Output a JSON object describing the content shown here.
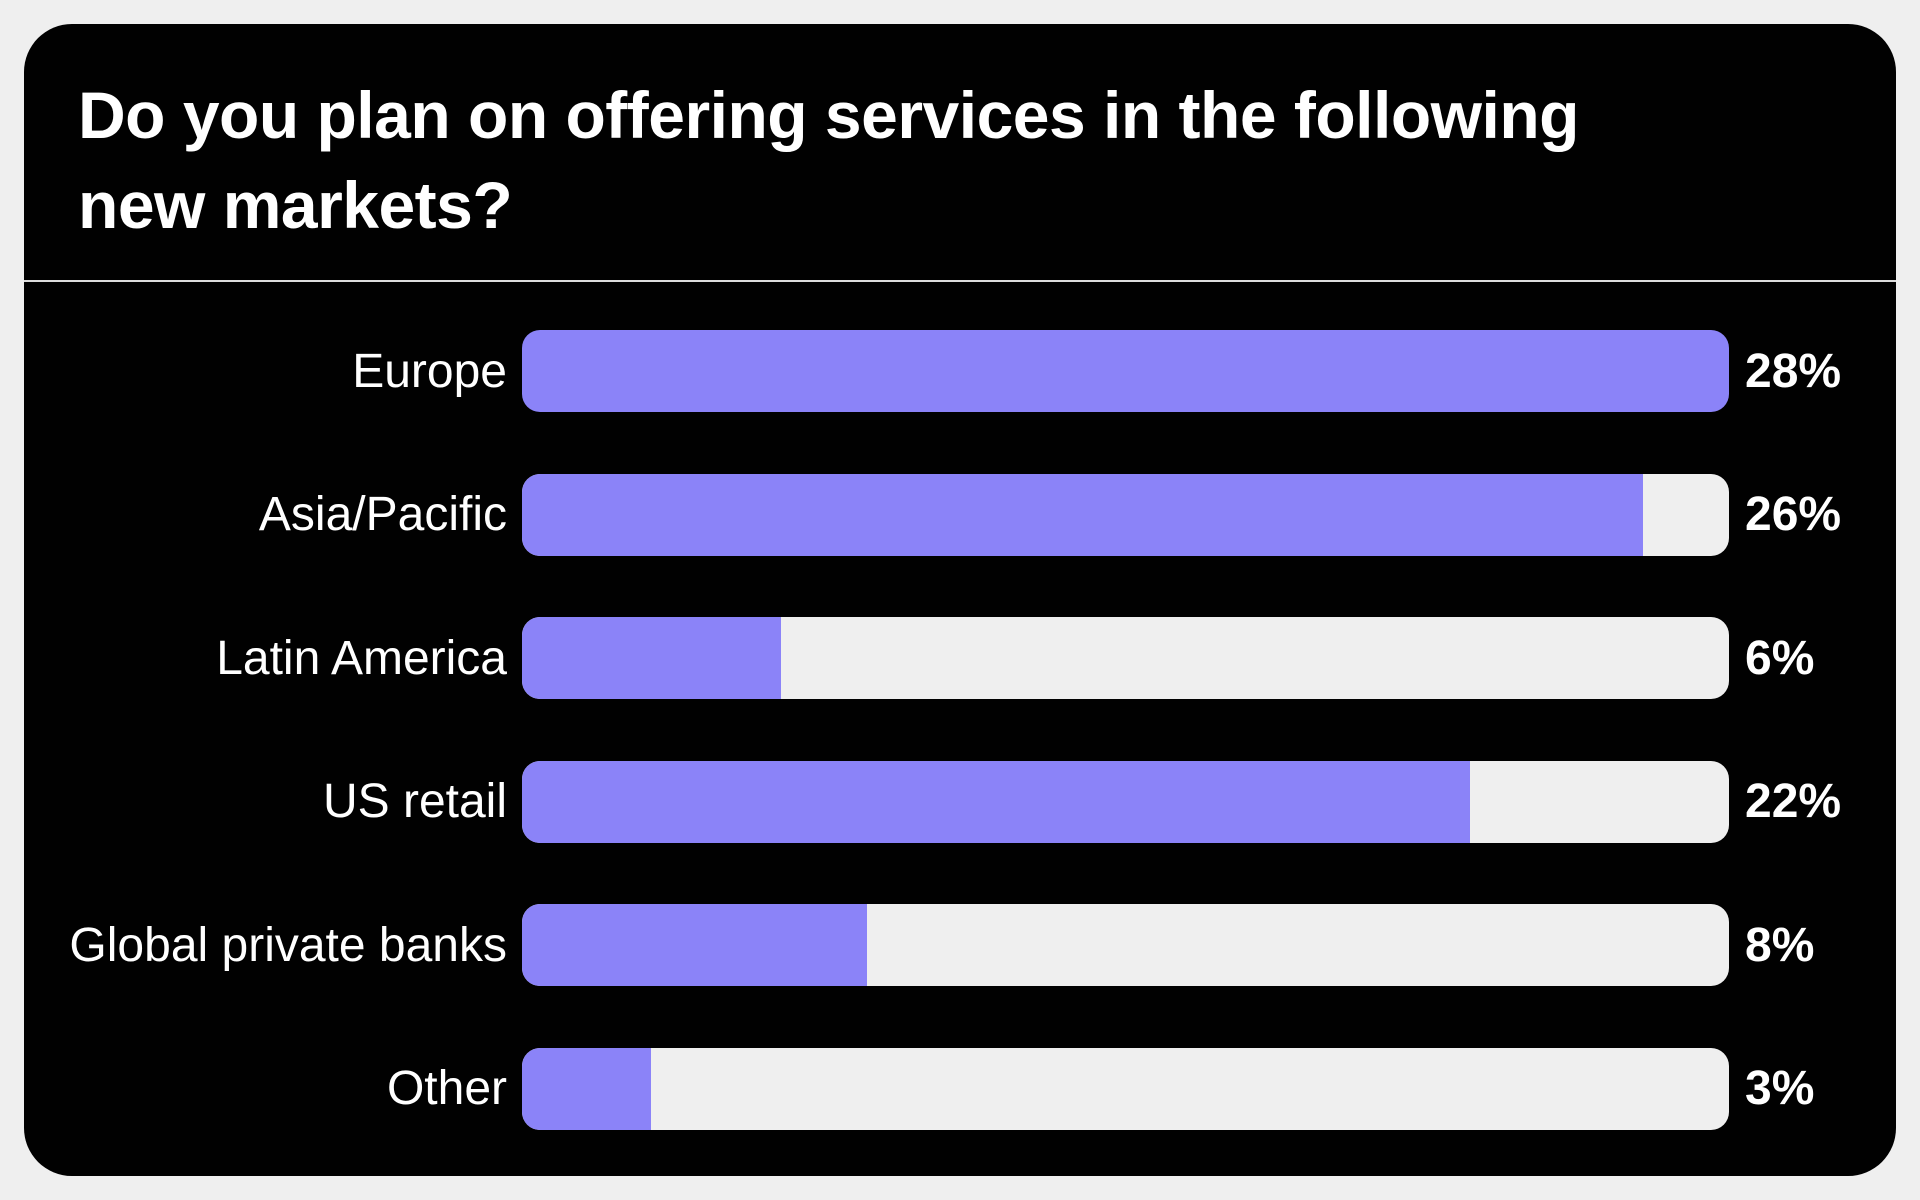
{
  "title": "Do you plan on offering services in the following new markets?",
  "title_lines": [
    "Do you plan on offering services in the following",
    "new markets?"
  ],
  "chart_data": {
    "type": "bar",
    "orientation": "horizontal",
    "title": "Do you plan on offering services in the following new markets?",
    "categories": [
      "Europe",
      "Asia/Pacific",
      "Latin America",
      "US retail",
      "Global private banks",
      "Other"
    ],
    "values": [
      28,
      26,
      6,
      22,
      8,
      3
    ],
    "value_labels": [
      "28%",
      "26%",
      "6%",
      "22%",
      "8%",
      "3%"
    ],
    "value_suffix": "%",
    "axis_max": 28,
    "grid": false,
    "legend": false,
    "value_label_position": "right-of-bar",
    "category_label_position": "left-of-bar"
  },
  "colors": {
    "page_background": "#efefef",
    "card_background": "#010101",
    "bar_fill": "#8b83f8",
    "bar_track": "#efefef",
    "text": "#ffffff",
    "divider": "#dcdcdc"
  }
}
